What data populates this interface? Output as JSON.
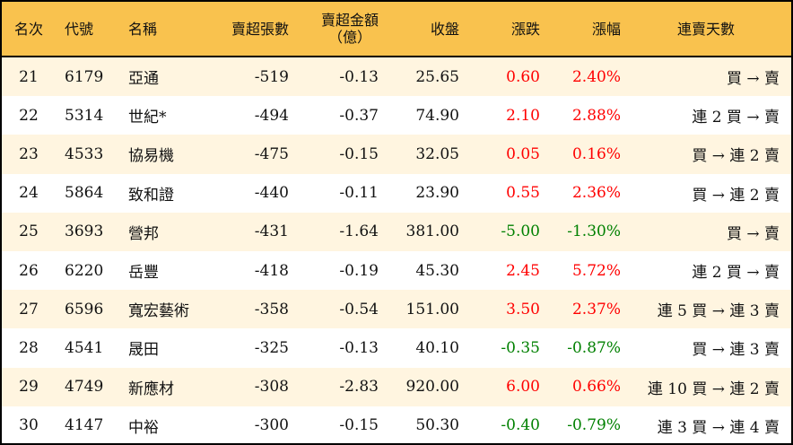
{
  "headers": {
    "rank": "名次",
    "code": "代號",
    "name": "名稱",
    "shares": "賣超張數",
    "amount_l1": "賣超金額",
    "amount_l2": "（億）",
    "close": "收盤",
    "change": "漲跌",
    "pct": "漲幅",
    "streak": "連賣天數"
  },
  "colors": {
    "header_bg": "#F9C24E",
    "row_alt_bg": "#FFF5E0",
    "up": "#FF0000",
    "down": "#008000"
  },
  "rows": [
    {
      "rank": "21",
      "code": "6179",
      "name": "亞通",
      "shares": "-519",
      "amount": "-0.13",
      "close": "25.65",
      "change": "0.60",
      "pct": "2.40%",
      "streak": "買 → 賣",
      "dir": "up"
    },
    {
      "rank": "22",
      "code": "5314",
      "name": "世紀*",
      "shares": "-494",
      "amount": "-0.37",
      "close": "74.90",
      "change": "2.10",
      "pct": "2.88%",
      "streak": "連 2 買 → 賣",
      "dir": "up"
    },
    {
      "rank": "23",
      "code": "4533",
      "name": "協易機",
      "shares": "-475",
      "amount": "-0.15",
      "close": "32.05",
      "change": "0.05",
      "pct": "0.16%",
      "streak": "買 → 連 2 賣",
      "dir": "up"
    },
    {
      "rank": "24",
      "code": "5864",
      "name": "致和證",
      "shares": "-440",
      "amount": "-0.11",
      "close": "23.90",
      "change": "0.55",
      "pct": "2.36%",
      "streak": "買 → 連 2 賣",
      "dir": "up"
    },
    {
      "rank": "25",
      "code": "3693",
      "name": "營邦",
      "shares": "-431",
      "amount": "-1.64",
      "close": "381.00",
      "change": "-5.00",
      "pct": "-1.30%",
      "streak": "買 → 賣",
      "dir": "down"
    },
    {
      "rank": "26",
      "code": "6220",
      "name": "岳豐",
      "shares": "-418",
      "amount": "-0.19",
      "close": "45.30",
      "change": "2.45",
      "pct": "5.72%",
      "streak": "連 2 買 → 賣",
      "dir": "up"
    },
    {
      "rank": "27",
      "code": "6596",
      "name": "寬宏藝術",
      "shares": "-358",
      "amount": "-0.54",
      "close": "151.00",
      "change": "3.50",
      "pct": "2.37%",
      "streak": "連 5 買 → 連 3 賣",
      "dir": "up"
    },
    {
      "rank": "28",
      "code": "4541",
      "name": "晟田",
      "shares": "-325",
      "amount": "-0.13",
      "close": "40.10",
      "change": "-0.35",
      "pct": "-0.87%",
      "streak": "買 → 連 3 賣",
      "dir": "down"
    },
    {
      "rank": "29",
      "code": "4749",
      "name": "新應材",
      "shares": "-308",
      "amount": "-2.83",
      "close": "920.00",
      "change": "6.00",
      "pct": "0.66%",
      "streak": "連 10 買 → 連 2 賣",
      "dir": "up"
    },
    {
      "rank": "30",
      "code": "4147",
      "name": "中裕",
      "shares": "-300",
      "amount": "-0.15",
      "close": "50.30",
      "change": "-0.40",
      "pct": "-0.79%",
      "streak": "連 3 買 → 連 4 賣",
      "dir": "down"
    }
  ]
}
